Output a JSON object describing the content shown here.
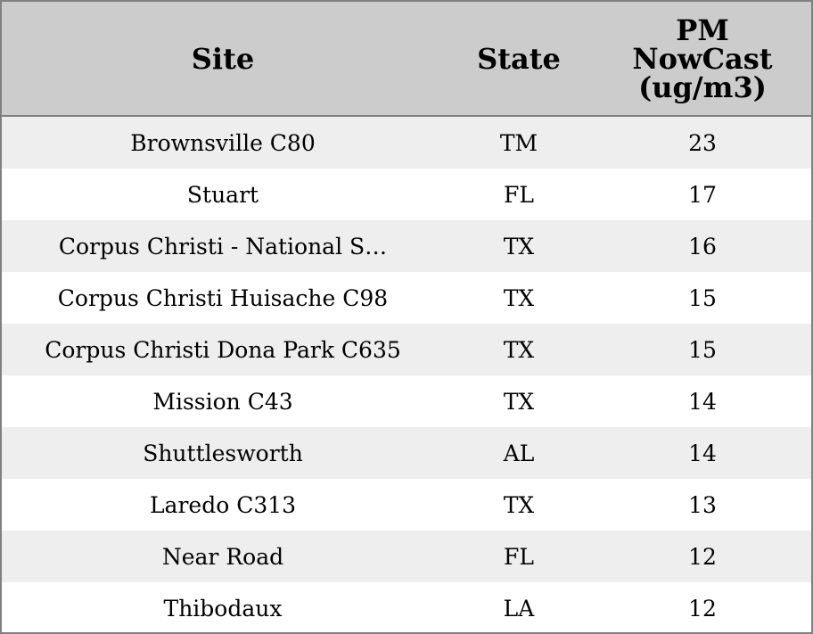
{
  "chart_data": {
    "type": "table",
    "columns": [
      "Site",
      "State",
      "PM NowCast (ug/m3)"
    ],
    "header_lines": {
      "site": "Site",
      "state": "State",
      "pm": [
        "PM",
        "NowCast",
        "(ug/m3)"
      ]
    },
    "rows": [
      {
        "site": "Brownsville C80",
        "state": "TM",
        "pm": "23"
      },
      {
        "site": "Stuart",
        "state": "FL",
        "pm": "17"
      },
      {
        "site": "Corpus Christi - National S…",
        "state": "TX",
        "pm": "16"
      },
      {
        "site": "Corpus Christi Huisache C98",
        "state": "TX",
        "pm": "15"
      },
      {
        "site": "Corpus Christi Dona Park C635",
        "state": "TX",
        "pm": "15"
      },
      {
        "site": "Mission C43",
        "state": "TX",
        "pm": "14"
      },
      {
        "site": "Shuttlesworth",
        "state": "AL",
        "pm": "14"
      },
      {
        "site": "Laredo C313",
        "state": "TX",
        "pm": "13"
      },
      {
        "site": "Near Road",
        "state": "FL",
        "pm": "12"
      },
      {
        "site": "Thibodaux",
        "state": "LA",
        "pm": "12"
      }
    ]
  },
  "colors": {
    "header_bg": "#cccccc",
    "row_alt_bg": "#eeeeee",
    "row_bg": "#ffffff",
    "border": "#808080"
  }
}
